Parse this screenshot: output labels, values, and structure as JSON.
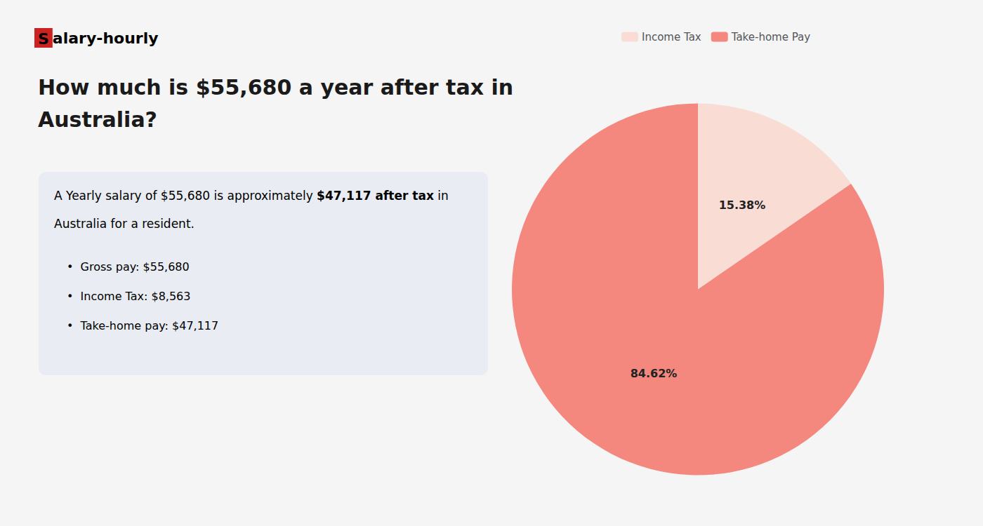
{
  "chart_data": {
    "type": "pie",
    "title": "How much is $55,680 a year after tax in\nAustralia?",
    "categories": [
      "Income Tax",
      "Take-home Pay"
    ],
    "values": [
      15.38,
      84.62
    ],
    "value_labels": [
      "15.38%",
      "84.62%"
    ],
    "colors": [
      "#f9ddd5",
      "#f4877e"
    ],
    "data_labels": true,
    "legend": "top",
    "annotations": [
      [
        {
          "text": "S",
          "color": "#cc2222"
        },
        {
          "text": "alary-hourly"
        }
      ],
      [
        {
          "text": "A Yearly salary of $55,680 is approximately "
        },
        {
          "text": "$47,117 after tax",
          "color": "#cc2222"
        },
        {
          "text": " in"
        }
      ],
      [
        {
          "text": "Australia for a resident."
        }
      ],
      [
        {
          "text": "•  Gross pay: $55,680"
        }
      ],
      [
        {
          "text": "•  Income Tax: $8,563"
        }
      ],
      [
        {
          "text": "•  Take-home pay: $47,117"
        }
      ]
    ]
  }
}
